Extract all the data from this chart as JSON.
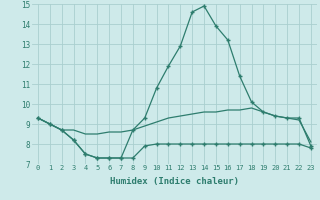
{
  "x": [
    0,
    1,
    2,
    3,
    4,
    5,
    6,
    7,
    8,
    9,
    10,
    11,
    12,
    13,
    14,
    15,
    16,
    17,
    18,
    19,
    20,
    21,
    22,
    23
  ],
  "line_max": [
    9.3,
    9.0,
    8.7,
    8.2,
    7.5,
    7.3,
    7.3,
    7.3,
    8.7,
    9.3,
    10.8,
    11.9,
    12.9,
    14.6,
    14.9,
    13.9,
    13.2,
    11.4,
    10.1,
    9.6,
    9.4,
    9.3,
    9.3,
    7.9
  ],
  "line_mean": [
    9.3,
    9.0,
    8.7,
    8.7,
    8.5,
    8.5,
    8.6,
    8.6,
    8.7,
    8.9,
    9.1,
    9.3,
    9.4,
    9.5,
    9.6,
    9.6,
    9.7,
    9.7,
    9.8,
    9.6,
    9.4,
    9.3,
    9.2,
    8.1
  ],
  "line_min": [
    9.3,
    9.0,
    8.7,
    8.2,
    7.5,
    7.3,
    7.3,
    7.3,
    7.3,
    7.9,
    8.0,
    8.0,
    8.0,
    8.0,
    8.0,
    8.0,
    8.0,
    8.0,
    8.0,
    8.0,
    8.0,
    8.0,
    8.0,
    7.8
  ],
  "color": "#2e7d6e",
  "bg_color": "#ceeaea",
  "grid_color": "#aacfcf",
  "xlabel": "Humidex (Indice chaleur)",
  "ylim": [
    7,
    15
  ],
  "xlim": [
    -0.5,
    23.5
  ],
  "yticks": [
    7,
    8,
    9,
    10,
    11,
    12,
    13,
    14,
    15
  ],
  "xticks": [
    0,
    1,
    2,
    3,
    4,
    5,
    6,
    7,
    8,
    9,
    10,
    11,
    12,
    13,
    14,
    15,
    16,
    17,
    18,
    19,
    20,
    21,
    22,
    23
  ],
  "marker": "+"
}
